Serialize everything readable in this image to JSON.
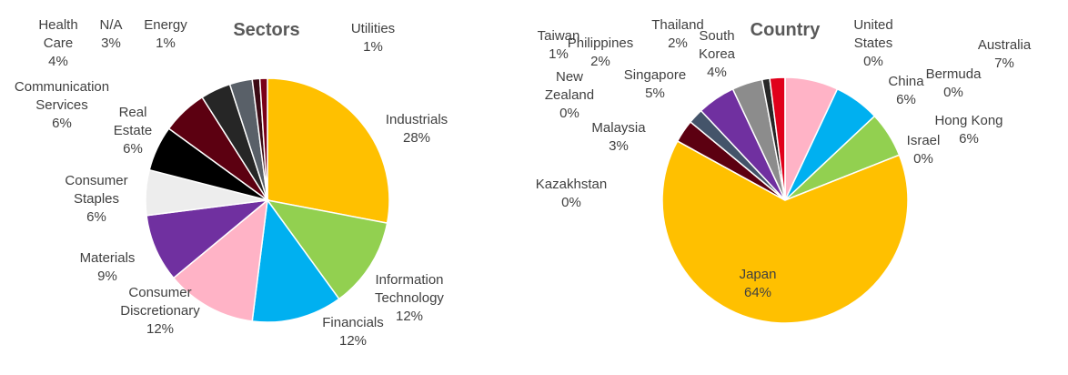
{
  "chart_data": [
    {
      "type": "pie",
      "title": "Sectors",
      "categories": [
        "Industrials",
        "Information Technology",
        "Financials",
        "Consumer Discretionary",
        "Materials",
        "Consumer Staples",
        "Real Estate",
        "Communication Services",
        "Health Care",
        "N/A",
        "Energy",
        "Utilities"
      ],
      "values": [
        28,
        12,
        12,
        12,
        9,
        6,
        6,
        6,
        4,
        3,
        1,
        1
      ],
      "value_labels": [
        "28%",
        "12%",
        "12%",
        "12%",
        "9%",
        "6%",
        "6%",
        "6%",
        "4%",
        "3%",
        "1%",
        "1%"
      ],
      "colors": [
        "#ffc000",
        "#92d050",
        "#00b0f0",
        "#ffb3c6",
        "#7030a0",
        "#ededed",
        "#000000",
        "#5c0011",
        "#262626",
        "#596068",
        "#3b0a14",
        "#7a0019"
      ]
    },
    {
      "type": "pie",
      "title": "Country",
      "categories": [
        "Australia",
        "Bermuda",
        "China",
        "Hong Kong",
        "Israel",
        "Japan",
        "Kazakhstan",
        "Malaysia",
        "New Zealand",
        "Philippines",
        "Singapore",
        "South Korea",
        "Taiwan",
        "Thailand",
        "United States"
      ],
      "values": [
        7,
        0,
        6,
        6,
        0,
        64,
        0,
        3,
        0,
        2,
        5,
        4,
        1,
        2,
        0
      ],
      "value_labels": [
        "7%",
        "0%",
        "6%",
        "6%",
        "0%",
        "64%",
        "0%",
        "3%",
        "0%",
        "2%",
        "5%",
        "4%",
        "1%",
        "2%",
        "0%"
      ],
      "colors": [
        "#ffb3c6",
        "#cccccc",
        "#00b0f0",
        "#92d050",
        "#dddddd",
        "#ffc000",
        "#ffffff",
        "#5c0011",
        "#cccccc",
        "#44546a",
        "#7030a0",
        "#8c8c8c",
        "#262626",
        "#e0001b",
        "#eeeeee"
      ]
    }
  ]
}
